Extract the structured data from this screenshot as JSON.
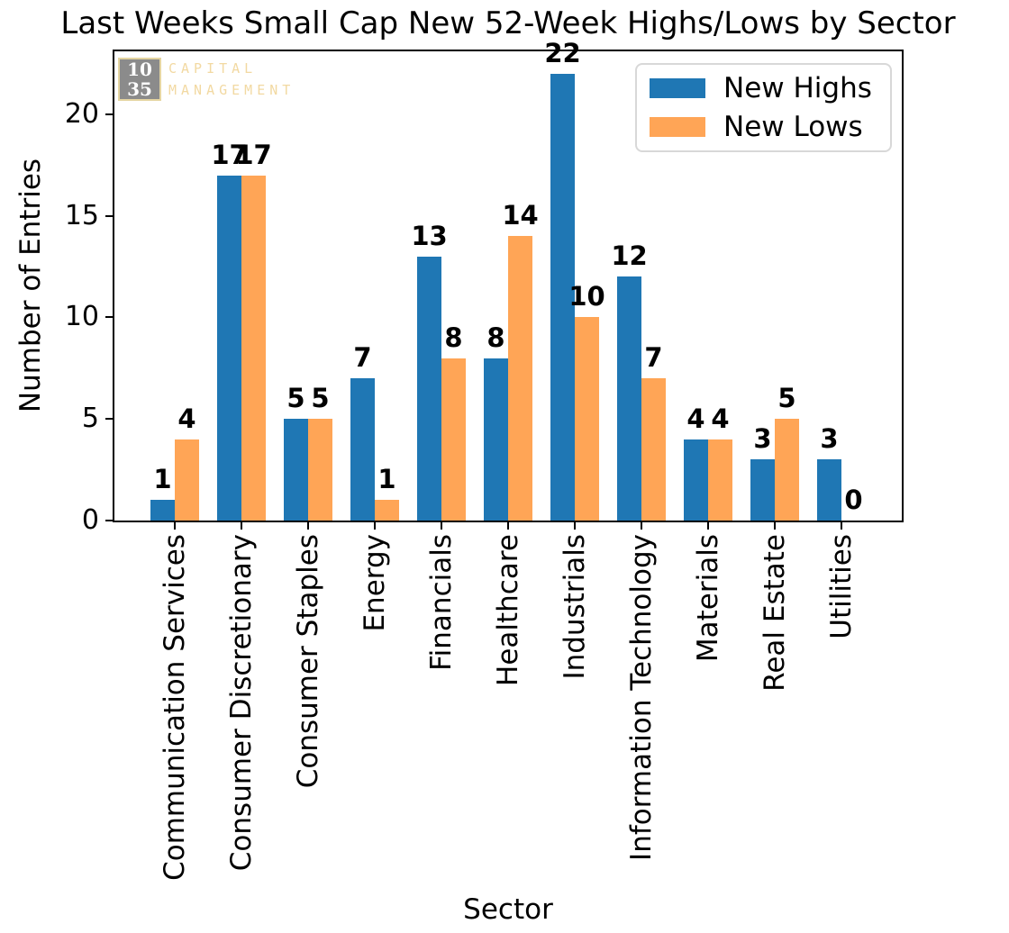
{
  "title": "Last Weeks Small Cap New 52-Week Highs/Lows by Sector",
  "logo": {
    "number_top": "10",
    "number_bottom": "35",
    "brand_line1": "CAPITAL",
    "brand_line2": "MANAGEMENT",
    "box_color": "#8b8b8b",
    "accent_color": "#f2d9a2"
  },
  "legend": {
    "entries": [
      {
        "label": "New Highs",
        "color": "#1f77b4"
      },
      {
        "label": "New Lows",
        "color": "#ffa556"
      }
    ],
    "position": "upper right"
  },
  "chart_data": {
    "type": "bar",
    "title": "Last Weeks Small Cap New 52-Week Highs/Lows by Sector",
    "xlabel": "Sector",
    "ylabel": "Number of Entries",
    "categories": [
      "Communication Services",
      "Consumer Discretionary",
      "Consumer Staples",
      "Energy",
      "Financials",
      "Healthcare",
      "Industrials",
      "Information Technology",
      "Materials",
      "Real Estate",
      "Utilities"
    ],
    "series": [
      {
        "name": "New Highs",
        "color": "#1f77b4",
        "values": [
          1,
          17,
          5,
          7,
          13,
          8,
          22,
          12,
          4,
          3,
          3
        ]
      },
      {
        "name": "New Lows",
        "color": "#ffa556",
        "values": [
          4,
          17,
          5,
          1,
          8,
          14,
          10,
          7,
          4,
          5,
          0
        ]
      }
    ],
    "yticks": [
      0,
      5,
      10,
      15,
      20
    ],
    "ylim": [
      0,
      23.1
    ],
    "grid": false,
    "bar_value_labels": true,
    "legend_position": "upper right",
    "x_tick_label_rotation": 90
  }
}
